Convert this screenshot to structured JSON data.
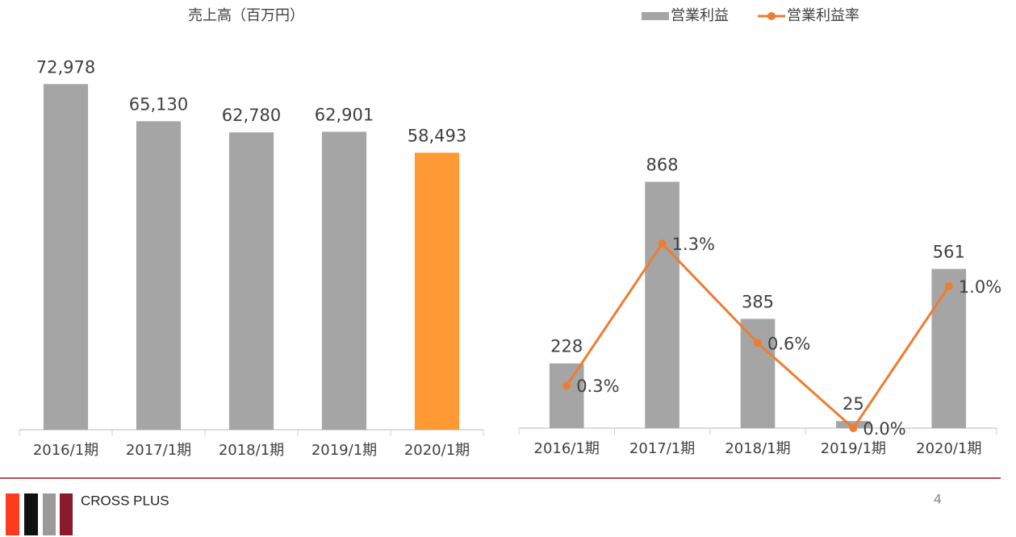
{
  "chart_data": [
    {
      "type": "bar",
      "title": "売上高（百万円）",
      "categories": [
        "2016/1期",
        "2017/1期",
        "2018/1期",
        "2019/1期",
        "2020/1期"
      ],
      "values": [
        72978,
        65130,
        62780,
        62901,
        58493
      ],
      "value_labels": [
        "72,978",
        "65,130",
        "62,780",
        "62,901",
        "58,493"
      ],
      "colors": [
        "#a5a5a5",
        "#a5a5a5",
        "#a5a5a5",
        "#a5a5a5",
        "#ff9933"
      ],
      "ylim": [
        0,
        80000
      ]
    },
    {
      "type": "bar-line",
      "categories": [
        "2016/1期",
        "2017/1期",
        "2018/1期",
        "2019/1期",
        "2020/1期"
      ],
      "series": [
        {
          "name": "営業利益",
          "type": "bar",
          "color": "#a5a5a5",
          "values": [
            228,
            868,
            385,
            25,
            561
          ],
          "value_labels": [
            "228",
            "868",
            "385",
            "25",
            "561"
          ]
        },
        {
          "name": "営業利益率",
          "type": "line",
          "axis": "y2",
          "color": "#ed7d31",
          "values": [
            0.3,
            1.3,
            0.6,
            0.0,
            1.0
          ],
          "value_labels": [
            "0.3%",
            "1.3%",
            "0.6%",
            "0.0%",
            "1.0%"
          ]
        }
      ],
      "ylim": [
        0,
        1000
      ],
      "y2lim": [
        0,
        2
      ],
      "legend": "top-right"
    }
  ],
  "footer": {
    "brand": "CROSS PLUS",
    "page": "4"
  }
}
